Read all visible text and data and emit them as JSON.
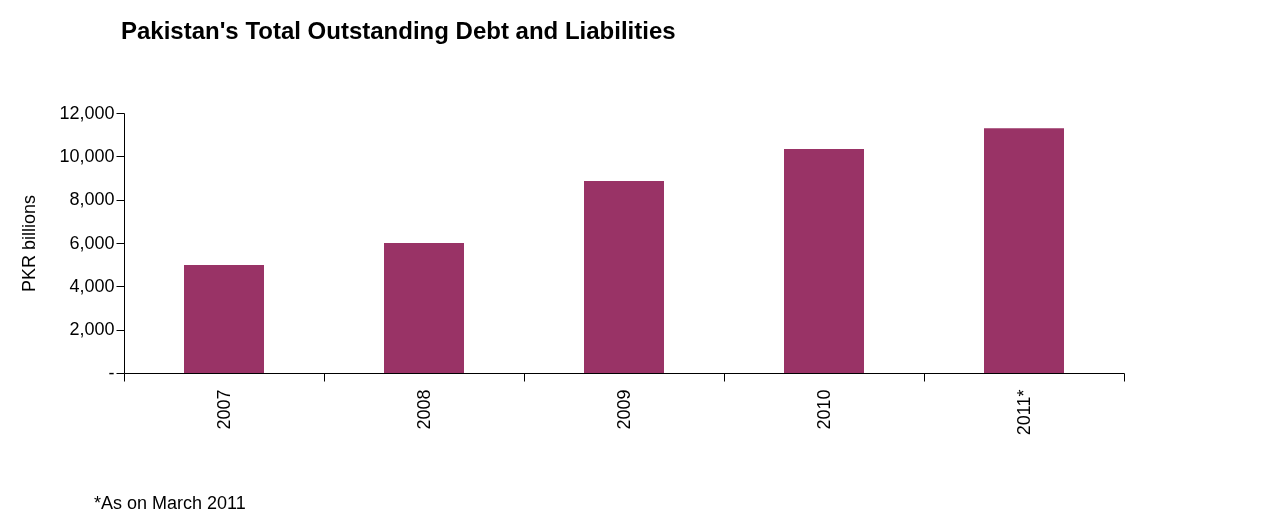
{
  "chart_data": {
    "type": "bar",
    "title": "Pakistan's Total Outstanding Debt and Liabilities",
    "ylabel": "PKR billions",
    "categories": [
      "2007",
      "2008",
      "2009",
      "2010",
      "2011*"
    ],
    "values": [
      4990,
      6000,
      8860,
      10340,
      11300
    ],
    "color": "#993366",
    "ylim": [
      0,
      12000
    ],
    "yticks": [
      {
        "value": 0,
        "label": "-"
      },
      {
        "value": 2000,
        "label": "2,000"
      },
      {
        "value": 4000,
        "label": "4,000"
      },
      {
        "value": 6000,
        "label": "6,000"
      },
      {
        "value": 8000,
        "label": "8,000"
      },
      {
        "value": 10000,
        "label": "10,000"
      },
      {
        "value": 12000,
        "label": "12,000"
      }
    ],
    "grid": false,
    "annotations": [
      "*As on March 2011"
    ]
  }
}
